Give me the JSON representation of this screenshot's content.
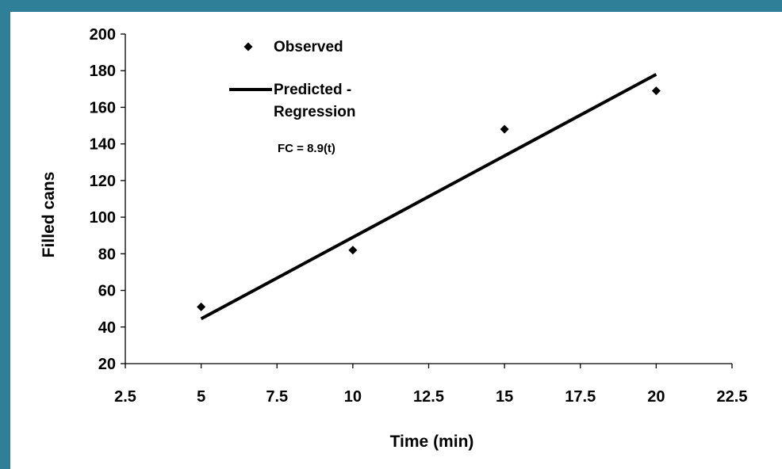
{
  "chart_data": {
    "type": "scatter",
    "xlabel": "Time (min)",
    "ylabel": "Filled cans",
    "xlim": [
      2.5,
      22.5
    ],
    "ylim": [
      20,
      200
    ],
    "xticks": [
      "2.5",
      "5",
      "7.5",
      "10",
      "12.5",
      "15",
      "17.5",
      "20",
      "22.5"
    ],
    "yticks": [
      "20",
      "40",
      "60",
      "80",
      "100",
      "120",
      "140",
      "160",
      "180",
      "200"
    ],
    "grid": false,
    "legend_position": "top-left",
    "series": [
      {
        "name": "Observed",
        "type": "scatter",
        "marker": "diamond",
        "color": "#000000",
        "x": [
          5,
          10,
          15,
          20
        ],
        "y": [
          51,
          82,
          148,
          169
        ]
      },
      {
        "name": "Predicted - Regression",
        "name_lines": [
          "Predicted -",
          "Regression"
        ],
        "type": "line",
        "color": "#000000",
        "x": [
          5,
          20
        ],
        "y": [
          44.5,
          178
        ]
      }
    ],
    "annotation": "FC = 8.9(t)"
  },
  "colors": {
    "border": "#2f7f98",
    "background": "#ffffff",
    "ink": "#000000"
  }
}
